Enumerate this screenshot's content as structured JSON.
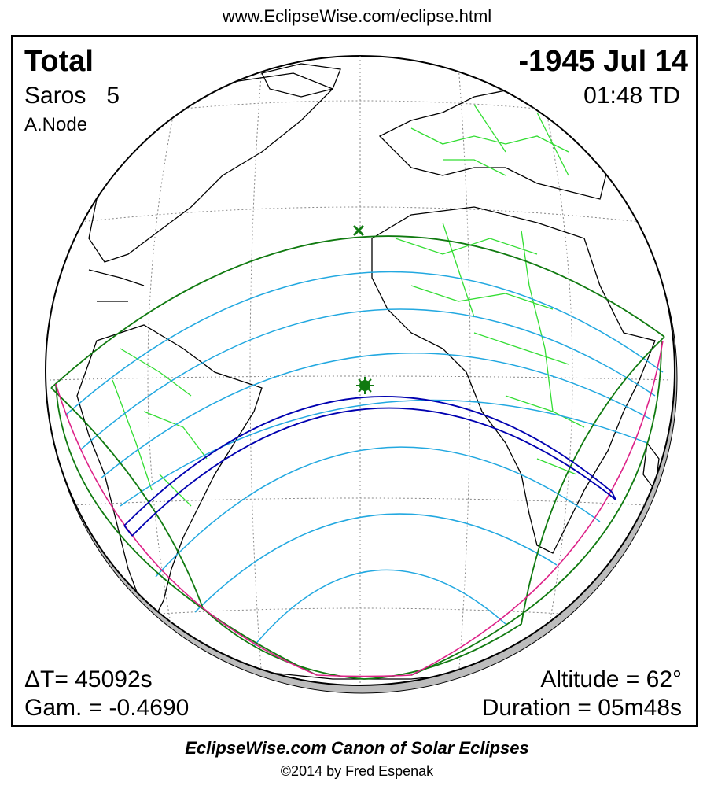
{
  "header": {
    "url": "www.EclipseWise.com/eclipse.html"
  },
  "eclipse": {
    "type": "Total",
    "saros_label": "Saros",
    "saros_number": "5",
    "node": "A.Node",
    "date": "-1945 Jul 14",
    "time": "01:48 TD",
    "delta_t": "ΔT=  45092s",
    "gamma": "Gam. = -0.4690",
    "altitude": "Altitude = 62°",
    "duration": "Duration = 05m48s"
  },
  "map": {
    "colors": {
      "land_outline": "#000000",
      "borders": "#33dd33",
      "penumbra_limit": "#107a10",
      "partial_curves": "#22a8e0",
      "umbral_path": "#0000b0",
      "sunrise_sunset": "#dd2288",
      "graticule": "#888888",
      "globe_shadow": "#bcbcbc"
    },
    "markers": {
      "greatest_eclipse_icon": "sun-star-icon",
      "subsolar_icon": "x-mark-icon"
    }
  },
  "footer": {
    "title": "EclipseWise.com Canon of Solar Eclipses",
    "copyright": "©2014 by Fred Espenak"
  }
}
